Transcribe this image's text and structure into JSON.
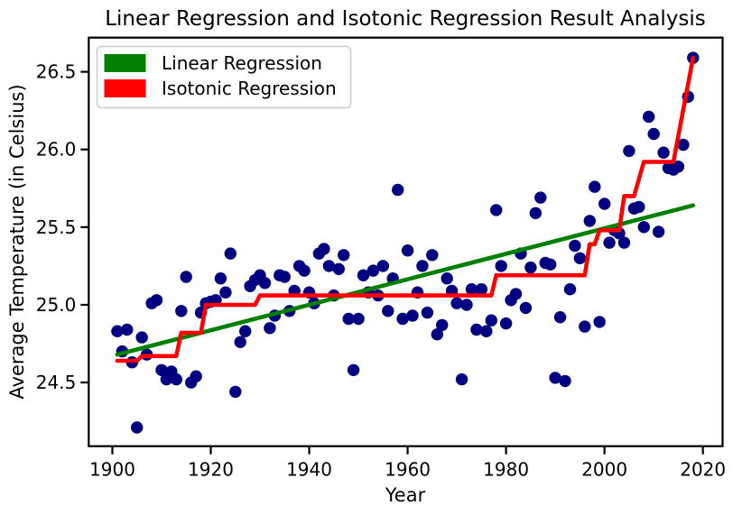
{
  "chart_data": {
    "type": "scatter",
    "title": "Linear Regression and Isotonic Regression Result Analysis",
    "xlabel": "Year",
    "ylabel": "Average Temperature (in Celsius)",
    "xlim": [
      1895.2,
      2024.0
    ],
    "ylim": [
      24.09,
      26.72
    ],
    "grid": false,
    "legend_position": "upper left",
    "x_ticks": {
      "values": [
        1900,
        1920,
        1940,
        1960,
        1980,
        2000,
        2020
      ],
      "labels": [
        "1900",
        "1920",
        "1940",
        "1960",
        "1980",
        "2000",
        "2020"
      ]
    },
    "y_ticks": {
      "values": [
        24.5,
        25.0,
        25.5,
        26.0,
        26.5
      ],
      "labels": [
        "24.5",
        "25.0",
        "25.5",
        "26.0",
        "26.5"
      ]
    },
    "scatter": {
      "name": "yearly-average-temperature-points",
      "color": "#000080",
      "years": [
        1901,
        1902,
        1903,
        1904,
        1905,
        1906,
        1907,
        1908,
        1909,
        1910,
        1911,
        1912,
        1913,
        1914,
        1915,
        1916,
        1917,
        1918,
        1919,
        1920,
        1921,
        1922,
        1923,
        1924,
        1925,
        1926,
        1927,
        1928,
        1929,
        1930,
        1931,
        1932,
        1933,
        1934,
        1935,
        1936,
        1937,
        1938,
        1939,
        1940,
        1941,
        1942,
        1943,
        1944,
        1945,
        1946,
        1947,
        1948,
        1949,
        1950,
        1951,
        1952,
        1953,
        1954,
        1955,
        1956,
        1957,
        1958,
        1959,
        1960,
        1961,
        1962,
        1963,
        1964,
        1965,
        1966,
        1967,
        1968,
        1969,
        1970,
        1971,
        1972,
        1973,
        1974,
        1975,
        1976,
        1977,
        1978,
        1979,
        1980,
        1981,
        1982,
        1983,
        1984,
        1985,
        1986,
        1987,
        1988,
        1989,
        1990,
        1991,
        1992,
        1993,
        1994,
        1995,
        1996,
        1997,
        1998,
        1999,
        2000,
        2001,
        2002,
        2003,
        2004,
        2005,
        2006,
        2007,
        2008,
        2009,
        2010,
        2011,
        2012,
        2013,
        2014,
        2015,
        2016,
        2017,
        2018
      ],
      "temps": [
        24.83,
        24.7,
        24.84,
        24.63,
        24.21,
        24.79,
        24.68,
        25.01,
        25.03,
        24.58,
        24.52,
        24.57,
        24.52,
        24.96,
        25.18,
        24.5,
        24.54,
        24.95,
        25.01,
        25.02,
        25.03,
        25.17,
        25.08,
        25.33,
        24.44,
        24.76,
        24.83,
        25.12,
        25.16,
        25.19,
        25.14,
        24.85,
        24.93,
        25.19,
        25.18,
        24.96,
        25.09,
        25.25,
        25.22,
        25.08,
        25.01,
        25.33,
        25.36,
        25.25,
        25.06,
        25.23,
        25.32,
        24.91,
        24.58,
        24.91,
        25.19,
        25.08,
        25.22,
        25.06,
        25.25,
        24.96,
        25.17,
        25.74,
        24.91,
        25.35,
        24.93,
        25.08,
        25.25,
        24.95,
        25.32,
        24.81,
        24.87,
        25.17,
        25.09,
        25.01,
        24.52,
        25.0,
        25.1,
        24.84,
        25.1,
        24.83,
        24.9,
        25.61,
        25.25,
        24.88,
        25.03,
        25.07,
        25.33,
        24.98,
        25.24,
        25.59,
        25.69,
        25.27,
        25.26,
        24.53,
        24.92,
        24.51,
        25.1,
        25.38,
        25.3,
        24.86,
        25.54,
        25.76,
        24.89,
        25.65,
        25.4,
        25.48,
        25.46,
        25.4,
        25.99,
        25.62,
        25.63,
        25.5,
        26.21,
        26.1,
        25.47,
        25.98,
        25.88,
        25.87,
        25.89,
        26.03,
        26.34,
        26.59
      ]
    },
    "series": [
      {
        "name": "Linear Regression",
        "color": "#008000",
        "points": [
          [
            1901,
            24.68
          ],
          [
            2018,
            25.64
          ]
        ]
      },
      {
        "name": "Isotonic Regression",
        "color": "#ff0000",
        "points": [
          [
            1901,
            24.64
          ],
          [
            1905,
            24.64
          ],
          [
            1906,
            24.67
          ],
          [
            1913,
            24.67
          ],
          [
            1914,
            24.82
          ],
          [
            1918,
            24.82
          ],
          [
            1919,
            25.0
          ],
          [
            1929,
            25.0
          ],
          [
            1930,
            25.06
          ],
          [
            1977,
            25.06
          ],
          [
            1978,
            25.19
          ],
          [
            1996,
            25.19
          ],
          [
            1997,
            25.39
          ],
          [
            1998,
            25.39
          ],
          [
            1999,
            25.48
          ],
          [
            2003,
            25.48
          ],
          [
            2004,
            25.7
          ],
          [
            2006,
            25.7
          ],
          [
            2008,
            25.92
          ],
          [
            2014,
            25.92
          ],
          [
            2018,
            26.59
          ]
        ]
      }
    ]
  }
}
